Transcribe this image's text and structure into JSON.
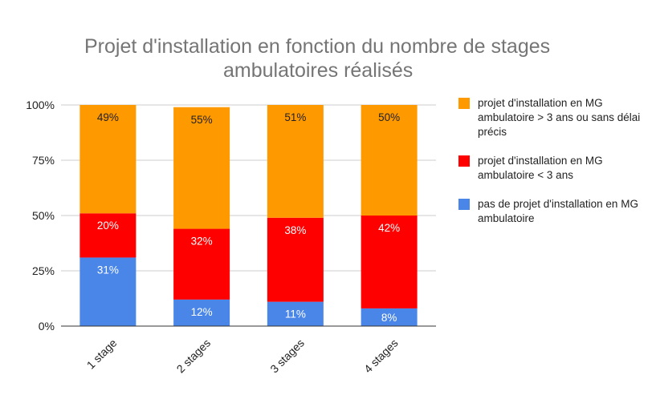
{
  "chart_data": {
    "type": "bar",
    "stacked": true,
    "title": "Projet d'installation en fonction du nombre de stages ambulatoires réalisés",
    "title_lines": [
      "Projet d'installation en fonction du nombre de stages",
      "ambulatoires réalisés"
    ],
    "categories": [
      "1 stage",
      "2 stages",
      "3 stages",
      "4 stages"
    ],
    "ylim": [
      0,
      100
    ],
    "yticks": [
      "0%",
      "25%",
      "50%",
      "75%",
      "100%"
    ],
    "grid": true,
    "legend_position": "right",
    "series": [
      {
        "name": "pas de projet d'installation en MG ambulatoire",
        "color": "#4a86e8",
        "values": [
          31,
          12,
          11,
          8
        ],
        "labels": [
          "31%",
          "12%",
          "11%",
          "8%"
        ]
      },
      {
        "name": "projet d'installation en MG ambulatoire < 3 ans",
        "color": "#ff0000",
        "values": [
          20,
          32,
          38,
          42
        ],
        "labels": [
          "20%",
          "32%",
          "38%",
          "42%"
        ]
      },
      {
        "name": "projet d'installation en MG ambulatoire > 3 ans ou sans délai précis",
        "color": "#ff9900",
        "values": [
          49,
          55,
          51,
          50
        ],
        "labels": [
          "49%",
          "55%",
          "51%",
          "50%"
        ]
      }
    ]
  },
  "legend": [
    {
      "label": "projet d'installation en MG ambulatoire > 3 ans ou sans délai précis",
      "color": "#ff9900"
    },
    {
      "label": "projet d'installation en MG ambulatoire < 3 ans",
      "color": "#ff0000"
    },
    {
      "label": "pas de projet d'installation en MG ambulatoire",
      "color": "#4a86e8"
    }
  ]
}
